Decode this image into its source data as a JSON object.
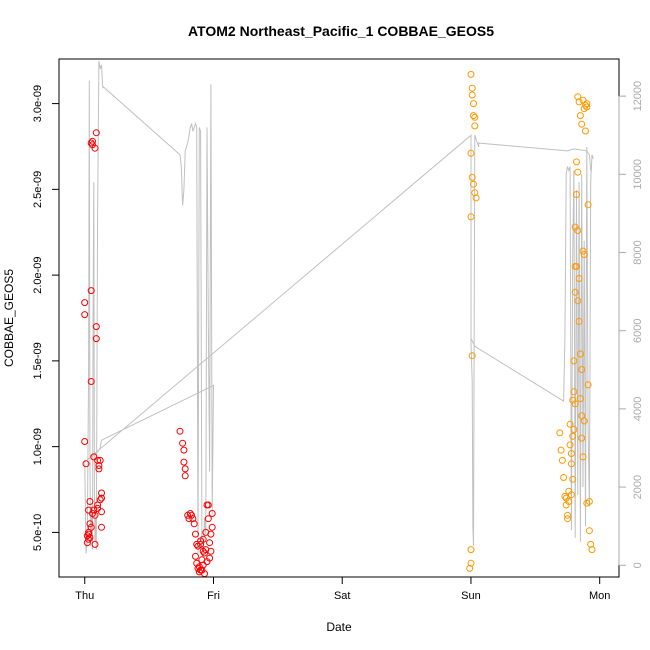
{
  "chart_data": {
    "type": "scatter",
    "title": "ATOM2 Northeast_Pacific_1 COBBAE_GEOS5",
    "xlabel": "Date",
    "ylabel": "COBBAE_GEOS5",
    "x_ticks": [
      "Thu",
      "Fri",
      "Sat",
      "Sun",
      "Mon"
    ],
    "x_range_days": [
      -0.2,
      4.15
    ],
    "y_left_range": [
      2.4e-10,
      3.26e-09
    ],
    "y_left_ticks": [
      {
        "value": 5e-10,
        "label": "5.0e-10"
      },
      {
        "value": 1e-09,
        "label": "1.0e-09"
      },
      {
        "value": 1.5e-09,
        "label": "1.5e-09"
      },
      {
        "value": 2e-09,
        "label": "2.0e-09"
      },
      {
        "value": 2.5e-09,
        "label": "2.5e-09"
      },
      {
        "value": 3e-09,
        "label": "3.0e-09"
      }
    ],
    "y_right_range": [
      -300,
      12950
    ],
    "y_right_ticks": [
      {
        "value": 0,
        "label": "0"
      },
      {
        "value": 2000,
        "label": "2000"
      },
      {
        "value": 4000,
        "label": "4000"
      },
      {
        "value": 6000,
        "label": "6000"
      },
      {
        "value": 8000,
        "label": "8000"
      },
      {
        "value": 10000,
        "label": "10000"
      },
      {
        "value": 12000,
        "label": "12000"
      }
    ],
    "grid": false,
    "legend": "none",
    "colors": {
      "red_points": "#ff0000",
      "orange_points": "#ff9900",
      "altitude_line": "#c0c0c0"
    },
    "series": [
      {
        "color": "#ff0000",
        "points": [
          [
            0.0,
            1.03e-09
          ],
          [
            0.01,
            9e-10
          ],
          [
            0.0,
            1.84e-09
          ],
          [
            0.0,
            1.77e-09
          ],
          [
            0.02,
            4.8e-10
          ],
          [
            0.02,
            4.4e-10
          ],
          [
            0.03,
            5e-10
          ],
          [
            0.03,
            4.6e-10
          ],
          [
            0.04,
            5.5e-10
          ],
          [
            0.03,
            6.3e-10
          ],
          [
            0.04,
            6.8e-10
          ],
          [
            0.04,
            4.7e-10
          ],
          [
            0.05,
            1.91e-09
          ],
          [
            0.05,
            1.38e-09
          ],
          [
            0.05,
            2.77e-09
          ],
          [
            0.06,
            2.78e-09
          ],
          [
            0.06,
            2.76e-09
          ],
          [
            0.07,
            9.4e-10
          ],
          [
            0.06,
            6.1e-10
          ],
          [
            0.07,
            6.3e-10
          ],
          [
            0.08,
            4.3e-10
          ],
          [
            0.08,
            2.74e-09
          ],
          [
            0.09,
            2.83e-09
          ],
          [
            0.09,
            1.63e-09
          ],
          [
            0.09,
            1.7e-09
          ],
          [
            0.1,
            9.2e-10
          ],
          [
            0.1,
            6.6e-10
          ],
          [
            0.11,
            8.9e-10
          ],
          [
            0.11,
            8.7e-10
          ],
          [
            0.12,
            9.2e-10
          ],
          [
            0.12,
            6.9e-10
          ],
          [
            0.13,
            7.3e-10
          ],
          [
            0.13,
            7e-10
          ],
          [
            0.13,
            6.2e-10
          ],
          [
            0.13,
            5.3e-10
          ],
          [
            0.1,
            6.4e-10
          ],
          [
            0.08,
            6e-10
          ],
          [
            0.05,
            5.3e-10
          ],
          [
            0.03,
            4.9e-10
          ],
          [
            0.74,
            1.09e-09
          ],
          [
            0.76,
            1.02e-09
          ],
          [
            0.77,
            9.8e-10
          ],
          [
            0.77,
            9.1e-10
          ],
          [
            0.78,
            8.7e-10
          ],
          [
            0.78,
            8.3e-10
          ],
          [
            0.8,
            6e-10
          ],
          [
            0.81,
            5.8e-10
          ],
          [
            0.82,
            6.1e-10
          ],
          [
            0.83,
            6e-10
          ],
          [
            0.84,
            5.8e-10
          ],
          [
            0.85,
            5.5e-10
          ],
          [
            0.86,
            4.9e-10
          ],
          [
            0.86,
            3.6e-10
          ],
          [
            0.87,
            3.2e-10
          ],
          [
            0.88,
            4.2e-10
          ],
          [
            0.88,
            2.9e-10
          ],
          [
            0.89,
            3e-10
          ],
          [
            0.89,
            2.7e-10
          ],
          [
            0.9,
            4.5e-10
          ],
          [
            0.9,
            4.3e-10
          ],
          [
            0.91,
            3.4e-10
          ],
          [
            0.91,
            2.8e-10
          ],
          [
            0.92,
            4.6e-10
          ],
          [
            0.92,
            3.1e-10
          ],
          [
            0.93,
            2.6e-10
          ],
          [
            0.93,
            3.8e-10
          ],
          [
            0.94,
            5e-10
          ],
          [
            0.94,
            4e-10
          ],
          [
            0.95,
            3.3e-10
          ],
          [
            0.95,
            6.6e-10
          ],
          [
            0.96,
            6.6e-10
          ],
          [
            0.96,
            5.8e-10
          ],
          [
            0.97,
            4.4e-10
          ],
          [
            0.97,
            3.5e-10
          ],
          [
            0.98,
            4.9e-10
          ],
          [
            0.98,
            3.9e-10
          ],
          [
            0.99,
            6.1e-10
          ],
          [
            0.99,
            5.3e-10
          ],
          [
            0.87,
            4.3e-10
          ],
          [
            0.9,
            2.8e-10
          ],
          [
            0.92,
            3.9e-10
          ]
        ]
      },
      {
        "color": "#ff9900",
        "points": [
          [
            3.0,
            3.17e-09
          ],
          [
            3.01,
            3.09e-09
          ],
          [
            3.01,
            3.05e-09
          ],
          [
            3.02,
            3e-09
          ],
          [
            3.02,
            2.93e-09
          ],
          [
            3.03,
            2.87e-09
          ],
          [
            3.03,
            2.92e-09
          ],
          [
            3.0,
            2.71e-09
          ],
          [
            3.01,
            2.57e-09
          ],
          [
            3.02,
            2.53e-09
          ],
          [
            3.03,
            2.48e-09
          ],
          [
            3.04,
            2.45e-09
          ],
          [
            3.0,
            2.34e-09
          ],
          [
            3.01,
            1.53e-09
          ],
          [
            3.0,
            4e-10
          ],
          [
            3.0,
            3.2e-10
          ],
          [
            2.99,
            2.9e-10
          ],
          [
            3.69,
            1.08e-09
          ],
          [
            3.7,
            9.8e-10
          ],
          [
            3.71,
            9.2e-10
          ],
          [
            3.72,
            8.2e-10
          ],
          [
            3.73,
            7.1e-10
          ],
          [
            3.74,
            7e-10
          ],
          [
            3.74,
            6.6e-10
          ],
          [
            3.75,
            6e-10
          ],
          [
            3.75,
            5.8e-10
          ],
          [
            3.76,
            6.8e-10
          ],
          [
            3.76,
            7.4e-10
          ],
          [
            3.77,
            1.13e-09
          ],
          [
            3.77,
            1.01e-09
          ],
          [
            3.78,
            9.6e-10
          ],
          [
            3.78,
            9e-10
          ],
          [
            3.79,
            1.06e-09
          ],
          [
            3.79,
            1.27e-09
          ],
          [
            3.8,
            1.32e-09
          ],
          [
            3.8,
            1.5e-09
          ],
          [
            3.81,
            1.9e-09
          ],
          [
            3.81,
            2.05e-09
          ],
          [
            3.81,
            2.28e-09
          ],
          [
            3.82,
            2.47e-09
          ],
          [
            3.82,
            2.66e-09
          ],
          [
            3.83,
            2.6e-09
          ],
          [
            3.83,
            2.26e-09
          ],
          [
            3.84,
            1.98e-09
          ],
          [
            3.84,
            1.73e-09
          ],
          [
            3.85,
            1.54e-09
          ],
          [
            3.85,
            1.28e-09
          ],
          [
            3.86,
            1.18e-09
          ],
          [
            3.86,
            1.05e-09
          ],
          [
            3.87,
            9.4e-10
          ],
          [
            3.87,
            2.14e-09
          ],
          [
            3.88,
            2.12e-09
          ],
          [
            3.88,
            2.97e-09
          ],
          [
            3.89,
            2.84e-09
          ],
          [
            3.9,
            3e-09
          ],
          [
            3.91,
            2.41e-09
          ],
          [
            3.91,
            1.36e-09
          ],
          [
            3.9,
            6.7e-10
          ],
          [
            3.92,
            6.8e-10
          ],
          [
            3.92,
            5.1e-10
          ],
          [
            3.93,
            4.3e-10
          ],
          [
            3.94,
            4e-10
          ],
          [
            3.83,
            3.04e-09
          ],
          [
            3.84,
            3.01e-09
          ],
          [
            3.85,
            2.93e-09
          ],
          [
            3.86,
            2.88e-09
          ],
          [
            3.87,
            3.02e-09
          ],
          [
            3.89,
            2.99e-09
          ],
          [
            3.9,
            2.98e-09
          ],
          [
            3.79,
            8.1e-10
          ],
          [
            3.78,
            7.2e-10
          ],
          [
            3.8,
            1.1e-09
          ],
          [
            3.81,
            1.25e-09
          ],
          [
            3.82,
            2.05e-09
          ],
          [
            3.83,
            1.85e-09
          ],
          [
            3.86,
            1.45e-09
          ],
          [
            3.88,
            1.15e-09
          ]
        ]
      }
    ],
    "altitude_series": {
      "color": "#c0c0c0",
      "points": [
        [
          0.0,
          2700
        ],
        [
          0.01,
          300
        ],
        [
          0.02,
          600
        ],
        [
          0.03,
          5000
        ],
        [
          0.035,
          12400
        ],
        [
          0.04,
          3000
        ],
        [
          0.045,
          500
        ],
        [
          0.05,
          1500
        ],
        [
          0.06,
          400
        ],
        [
          0.065,
          6600
        ],
        [
          0.07,
          9800
        ],
        [
          0.075,
          2000
        ],
        [
          0.08,
          600
        ],
        [
          0.085,
          1200
        ],
        [
          0.09,
          400
        ],
        [
          0.1,
          9000
        ],
        [
          0.11,
          12900
        ],
        [
          0.12,
          12700
        ],
        [
          0.13,
          12800
        ],
        [
          0.14,
          12200
        ],
        [
          0.14,
          12250
        ],
        [
          0.74,
          10500
        ],
        [
          0.75,
          10200
        ],
        [
          0.76,
          9200
        ],
        [
          0.77,
          9600
        ],
        [
          0.78,
          10600
        ],
        [
          0.79,
          10700
        ],
        [
          0.8,
          10800
        ],
        [
          0.81,
          11000
        ],
        [
          0.82,
          11200
        ],
        [
          0.83,
          11300
        ],
        [
          0.84,
          11100
        ],
        [
          0.85,
          11200
        ],
        [
          0.86,
          11300
        ],
        [
          0.87,
          11200
        ],
        [
          0.88,
          300
        ],
        [
          0.89,
          11200
        ],
        [
          0.9,
          11100
        ],
        [
          0.91,
          500
        ],
        [
          0.92,
          200
        ],
        [
          0.93,
          1200
        ],
        [
          0.94,
          800
        ],
        [
          0.95,
          11200
        ],
        [
          0.96,
          6300
        ],
        [
          0.97,
          2400
        ],
        [
          0.98,
          12300
        ],
        [
          0.99,
          1300
        ],
        [
          1.0,
          4600
        ],
        [
          1.0,
          4600
        ],
        [
          0.13,
          3200
        ],
        [
          0.12,
          3000
        ],
        [
          0.1,
          2900
        ],
        [
          0.02,
          2700
        ],
        [
          3.0,
          11000
        ],
        [
          3.0,
          5700
        ],
        [
          3.01,
          4700
        ],
        [
          3.015,
          1000
        ],
        [
          3.02,
          500
        ],
        [
          3.03,
          11000
        ],
        [
          3.04,
          10900
        ],
        [
          3.05,
          10800
        ],
        [
          3.06,
          10700
        ],
        [
          3.06,
          10800
        ],
        [
          3.75,
          10600
        ],
        [
          3.8,
          10650
        ],
        [
          3.9,
          10600
        ],
        [
          3.92,
          10500
        ],
        [
          3.93,
          10100
        ],
        [
          3.935,
          10100
        ],
        [
          3.94,
          10500
        ],
        [
          3.95,
          10400
        ],
        [
          3.94,
          10500
        ],
        [
          3.93,
          9800
        ],
        [
          3.92,
          1500
        ],
        [
          3.91,
          3500
        ],
        [
          3.9,
          10700
        ],
        [
          3.89,
          1000
        ],
        [
          3.88,
          8300
        ],
        [
          3.87,
          2000
        ],
        [
          3.86,
          10000
        ],
        [
          3.85,
          600
        ],
        [
          3.84,
          9800
        ],
        [
          3.83,
          1800
        ],
        [
          3.82,
          9600
        ],
        [
          3.81,
          700
        ],
        [
          3.8,
          10100
        ],
        [
          3.79,
          7900
        ],
        [
          3.78,
          900
        ],
        [
          3.77,
          10200
        ],
        [
          3.76,
          10100
        ],
        [
          3.75,
          10200
        ],
        [
          3.74,
          10000
        ],
        [
          3.73,
          5800
        ],
        [
          3.72,
          4200
        ],
        [
          3.03,
          5600
        ],
        [
          3.0,
          5800
        ]
      ]
    }
  }
}
